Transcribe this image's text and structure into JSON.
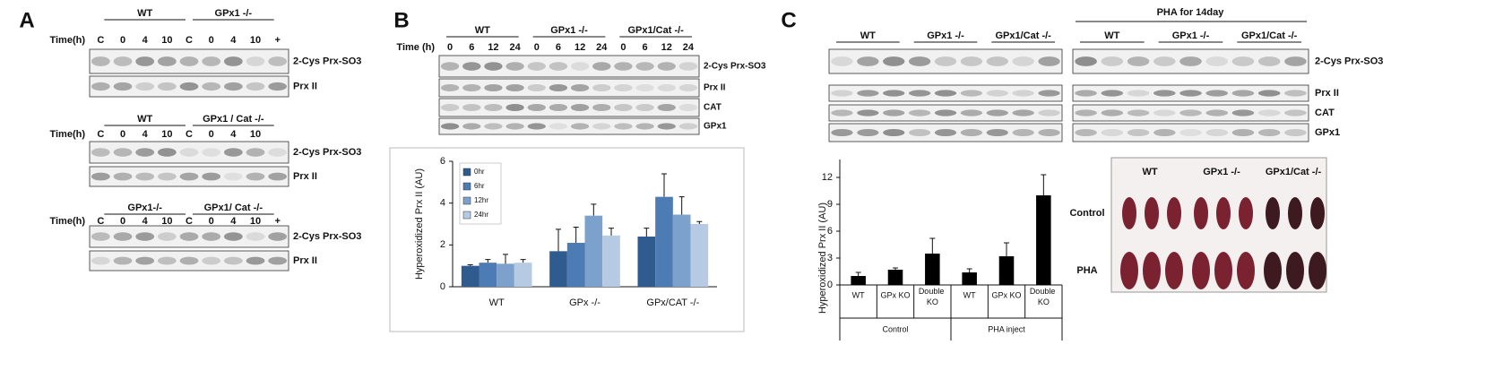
{
  "panel_a": {
    "label": "A",
    "groups": [
      {
        "headers": [
          "WT",
          "GPx1 -/-"
        ],
        "time_label": "Time(h)",
        "lanes": [
          "C",
          "0",
          "4",
          "10",
          "C",
          "0",
          "4",
          "10",
          "+"
        ],
        "bands": [
          "2-Cys Prx-SO3",
          "Prx II"
        ]
      },
      {
        "headers": [
          "WT",
          "GPx1 / Cat -/-"
        ],
        "time_label": "Time(h)",
        "lanes": [
          "C",
          "0",
          "4",
          "10",
          "C",
          "0",
          "4",
          "10"
        ],
        "bands": [
          "2-Cys Prx-SO3",
          "Prx II"
        ]
      },
      {
        "headers": [
          "GPx1-/-",
          "GPx1/ Cat -/-"
        ],
        "time_label": "Time(h)",
        "lanes": [
          "C",
          "0",
          "4",
          "10",
          "C",
          "0",
          "4",
          "10",
          "+"
        ],
        "bands": [
          "2-Cys Prx-SO3",
          "Prx II"
        ]
      }
    ]
  },
  "panel_b": {
    "label": "B",
    "headers": [
      "WT",
      "GPx1 -/-",
      "GPx1/Cat -/-"
    ],
    "time_label": "Time (h)",
    "lanes": [
      "0",
      "6",
      "12",
      "24",
      "0",
      "6",
      "12",
      "24",
      "0",
      "6",
      "12",
      "24"
    ],
    "bands": [
      "2-Cys Prx-SO3",
      "Prx II",
      "CAT",
      "GPx1"
    ]
  },
  "panel_c": {
    "label": "C",
    "treatment": "PHA for 14day",
    "headers": [
      "WT",
      "GPx1 -/-",
      "GPx1/Cat -/-"
    ],
    "bands": [
      "2-Cys Prx-SO3",
      "Prx II",
      "CAT",
      "GPx1"
    ],
    "photo": {
      "columns": [
        "WT",
        "GPx1 -/-",
        "GPx1/Cat -/-"
      ],
      "rows": [
        "Control",
        "PHA"
      ]
    }
  },
  "chart_data": [
    {
      "type": "bar",
      "y_label": "Hyperoxidized Prx II (AU)",
      "categories": [
        "WT",
        "GPx -/-",
        "GPx/CAT -/-"
      ],
      "series": [
        {
          "name": "0hr",
          "color": "#2f5b8e",
          "values": [
            1.0,
            1.7,
            2.4
          ],
          "errors": [
            0.05,
            1.05,
            0.4
          ]
        },
        {
          "name": "6hr",
          "color": "#4d7bb3",
          "values": [
            1.15,
            2.1,
            4.3
          ],
          "errors": [
            0.15,
            0.75,
            1.1
          ]
        },
        {
          "name": "12hr",
          "color": "#7da1cd",
          "values": [
            1.1,
            3.4,
            3.45
          ],
          "errors": [
            0.45,
            0.55,
            0.85
          ]
        },
        {
          "name": "24hr",
          "color": "#b6cae4",
          "values": [
            1.15,
            2.45,
            3.0
          ],
          "errors": [
            0.15,
            0.35,
            0.12
          ]
        }
      ],
      "ylim": [
        0,
        6
      ],
      "yticks": [
        0,
        2,
        4,
        6
      ],
      "legend": "upper left"
    },
    {
      "type": "bar",
      "y_label": "Hyperoxidized Prx II (AU)",
      "categories": [
        "WT",
        "GPx KO",
        "Double KO",
        "WT",
        "GPx KO",
        "Double KO"
      ],
      "groups": [
        "Control",
        "PHA inject"
      ],
      "color": "#000000",
      "values": [
        1.0,
        1.7,
        3.5,
        1.4,
        3.2,
        10.0
      ],
      "errors": [
        0.4,
        0.2,
        1.7,
        0.4,
        1.5,
        2.3
      ],
      "ylim": [
        0,
        14
      ],
      "yticks": [
        0,
        3,
        6,
        9,
        12
      ]
    }
  ]
}
